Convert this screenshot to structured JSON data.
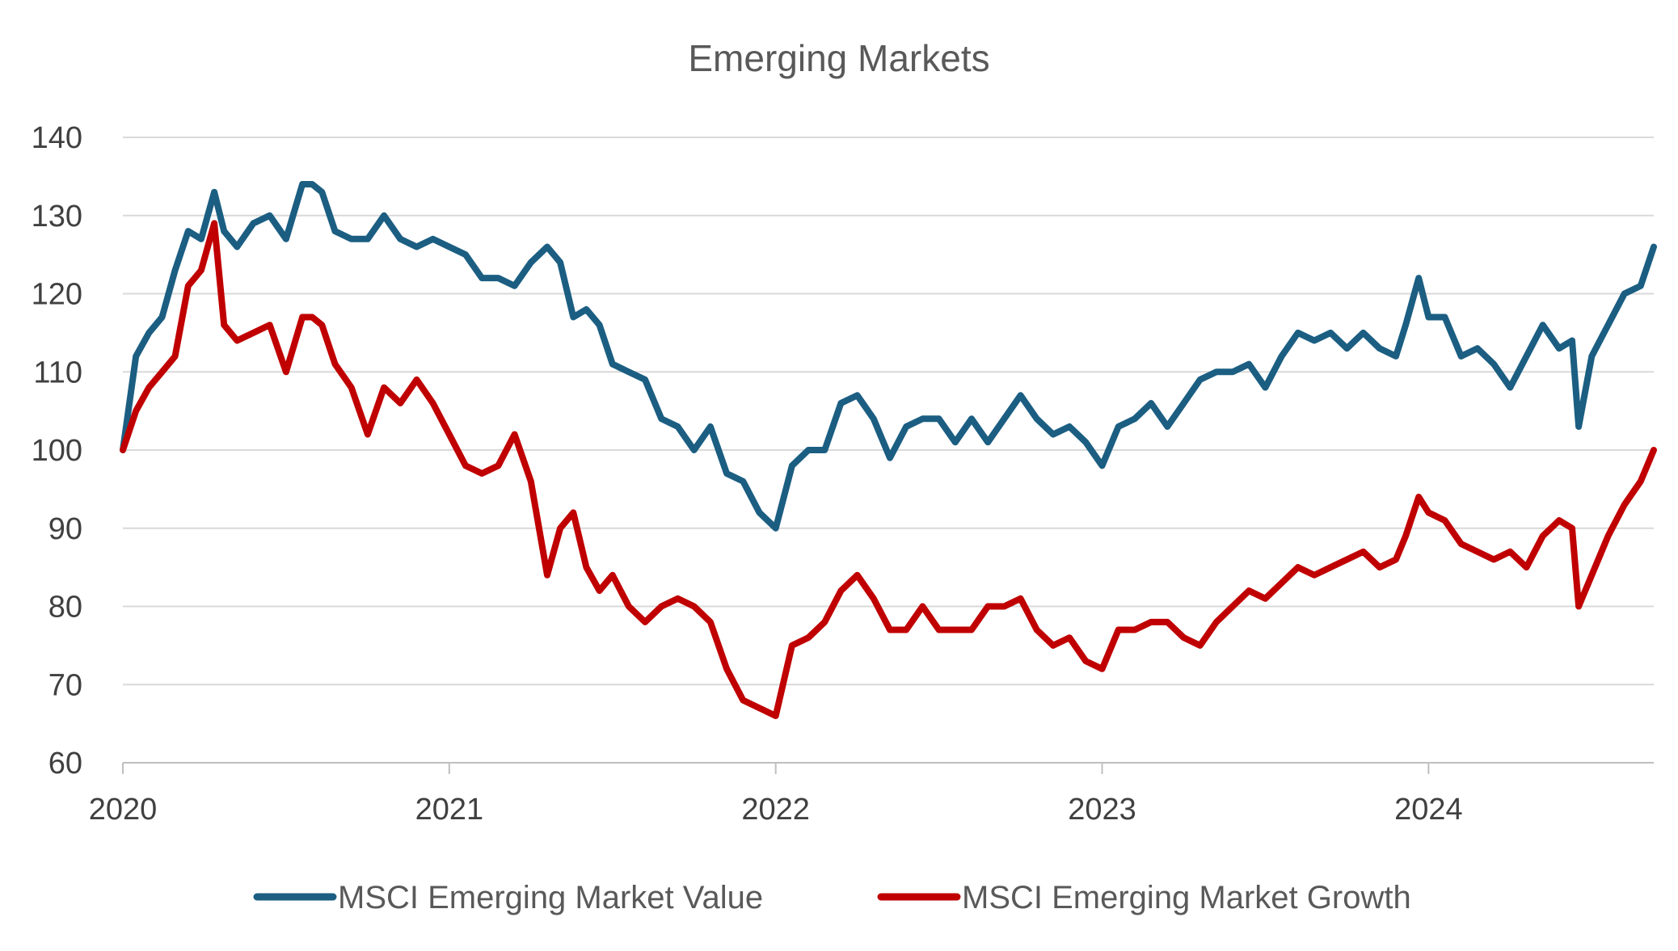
{
  "chart_data": {
    "type": "line",
    "title": "Emerging Markets",
    "xlabel": "",
    "ylabel": "",
    "ylim": [
      60,
      140
    ],
    "yticks": [
      60,
      70,
      80,
      90,
      100,
      110,
      120,
      130,
      140
    ],
    "xlim": [
      2020.0,
      2024.69
    ],
    "xticks": [
      "2020",
      "2021",
      "2022",
      "2023",
      "2024"
    ],
    "grid": "horizontal",
    "legend_position": "bottom",
    "colors": {
      "value": "#1b5e82",
      "growth": "#c00000",
      "grid": "#d9d9d9",
      "axis": "#bfbfbf",
      "text": "#404040"
    },
    "x": [
      2020.0,
      2020.04,
      2020.08,
      2020.12,
      2020.16,
      2020.2,
      2020.24,
      2020.28,
      2020.31,
      2020.35,
      2020.4,
      2020.45,
      2020.5,
      2020.55,
      2020.58,
      2020.61,
      2020.65,
      2020.7,
      2020.75,
      2020.8,
      2020.85,
      2020.9,
      2020.95,
      2021.0,
      2021.05,
      2021.1,
      2021.15,
      2021.2,
      2021.25,
      2021.3,
      2021.34,
      2021.38,
      2021.42,
      2021.46,
      2021.5,
      2021.55,
      2021.6,
      2021.65,
      2021.7,
      2021.75,
      2021.8,
      2021.85,
      2021.9,
      2021.95,
      2022.0,
      2022.05,
      2022.1,
      2022.15,
      2022.2,
      2022.25,
      2022.3,
      2022.35,
      2022.4,
      2022.45,
      2022.5,
      2022.55,
      2022.6,
      2022.65,
      2022.7,
      2022.75,
      2022.8,
      2022.85,
      2022.9,
      2022.95,
      2023.0,
      2023.05,
      2023.1,
      2023.15,
      2023.2,
      2023.25,
      2023.3,
      2023.35,
      2023.4,
      2023.45,
      2023.5,
      2023.55,
      2023.6,
      2023.65,
      2023.7,
      2023.75,
      2023.8,
      2023.85,
      2023.9,
      2023.93,
      2023.97,
      2024.0,
      2024.05,
      2024.1,
      2024.15,
      2024.2,
      2024.25,
      2024.3,
      2024.35,
      2024.4,
      2024.44,
      2024.46,
      2024.5,
      2024.55,
      2024.6,
      2024.65,
      2024.69
    ],
    "series": [
      {
        "name": "MSCI Emerging Market Value",
        "values": [
          100,
          112,
          115,
          117,
          123,
          128,
          127,
          133,
          128,
          126,
          129,
          130,
          127,
          134,
          134,
          133,
          128,
          127,
          127,
          130,
          127,
          126,
          127,
          126,
          125,
          122,
          122,
          121,
          124,
          126,
          124,
          117,
          118,
          116,
          111,
          110,
          109,
          104,
          103,
          100,
          103,
          97,
          96,
          92,
          90,
          98,
          100,
          100,
          106,
          107,
          104,
          99,
          103,
          104,
          104,
          101,
          104,
          101,
          104,
          107,
          104,
          102,
          103,
          101,
          98,
          103,
          104,
          106,
          103,
          106,
          109,
          110,
          110,
          111,
          108,
          112,
          115,
          114,
          115,
          113,
          115,
          113,
          112,
          116,
          122,
          117,
          117,
          112,
          113,
          111,
          108,
          112,
          116,
          113,
          114,
          103,
          112,
          116,
          120,
          121,
          126
        ]
      },
      {
        "name": "MSCI Emerging Market Growth",
        "values": [
          100,
          105,
          108,
          110,
          112,
          121,
          123,
          129,
          116,
          114,
          115,
          116,
          110,
          117,
          117,
          116,
          111,
          108,
          102,
          108,
          106,
          109,
          106,
          102,
          98,
          97,
          98,
          102,
          96,
          84,
          90,
          92,
          85,
          82,
          84,
          80,
          78,
          80,
          81,
          80,
          78,
          72,
          68,
          67,
          66,
          75,
          76,
          78,
          82,
          84,
          81,
          77,
          77,
          80,
          77,
          77,
          77,
          80,
          80,
          81,
          77,
          75,
          76,
          73,
          72,
          77,
          77,
          78,
          78,
          76,
          75,
          78,
          80,
          82,
          81,
          83,
          85,
          84,
          85,
          86,
          87,
          85,
          86,
          89,
          94,
          92,
          91,
          88,
          87,
          86,
          87,
          85,
          89,
          91,
          90,
          80,
          84,
          89,
          93,
          96,
          100
        ]
      }
    ]
  }
}
